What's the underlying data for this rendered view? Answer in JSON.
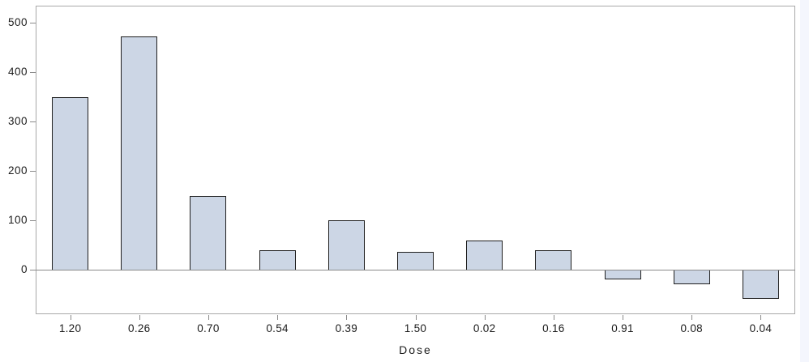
{
  "chart_data": {
    "type": "bar",
    "title": "",
    "xlabel": "Dose",
    "ylabel": "",
    "categories": [
      "1.20",
      "0.26",
      "0.70",
      "0.54",
      "0.39",
      "1.50",
      "0.02",
      "0.16",
      "0.91",
      "0.08",
      "0.04"
    ],
    "values": [
      350,
      472,
      150,
      40,
      100,
      36,
      60,
      40,
      -18,
      -28,
      -58
    ],
    "y_ticks": [
      0,
      100,
      200,
      300,
      400,
      500
    ],
    "ylim": [
      -90,
      535
    ],
    "grid": false,
    "legend": "none",
    "bar_fill_color": "#ccd6e5",
    "bar_border_color": "#1f1f1f",
    "frame_color": "#a8a8a8",
    "zero_line_color": "#8a8a8a",
    "text_color": "#1c1c1c",
    "page_edge_strip_color": "#f4f6fd"
  }
}
